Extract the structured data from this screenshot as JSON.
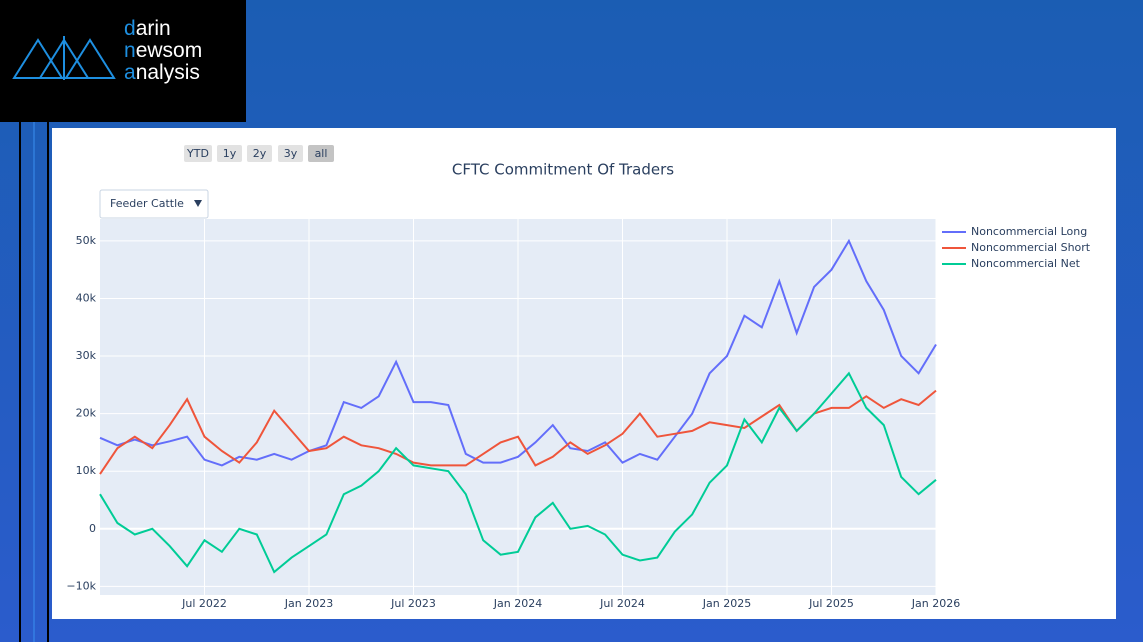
{
  "logo": {
    "lines": [
      "darin",
      "newsom",
      "analysis"
    ]
  },
  "range_buttons": [
    "YTD",
    "1y",
    "2y",
    "3y",
    "all"
  ],
  "dropdown": "Feeder Cattle",
  "chart_data": {
    "type": "line",
    "title": "CFTC Commitment Of Traders",
    "x": [
      "2022-01",
      "2022-02",
      "2022-03",
      "2022-04",
      "2022-05",
      "2022-06",
      "2022-07",
      "2022-08",
      "2022-09",
      "2022-10",
      "2022-11",
      "2022-12",
      "2023-01",
      "2023-02",
      "2023-03",
      "2023-04",
      "2023-05",
      "2023-06",
      "2023-07",
      "2023-08",
      "2023-09",
      "2023-10",
      "2023-11",
      "2023-12",
      "2024-01",
      "2024-02",
      "2024-03",
      "2024-04",
      "2024-05",
      "2024-06",
      "2024-07",
      "2024-08",
      "2024-09",
      "2024-10",
      "2024-11",
      "2024-12",
      "2025-01",
      "2025-02",
      "2025-03",
      "2025-04",
      "2025-05",
      "2025-06",
      "2025-07",
      "2025-08",
      "2025-09",
      "2025-10",
      "2025-11",
      "2025-12",
      "2026-01"
    ],
    "series": [
      {
        "name": "Noncommercial Long",
        "color": "#636efa",
        "values": [
          15800,
          14500,
          15500,
          14500,
          15200,
          16000,
          12000,
          11000,
          12500,
          12000,
          13000,
          12000,
          13500,
          14500,
          22000,
          21000,
          23000,
          29000,
          22000,
          22000,
          21500,
          13000,
          11500,
          11500,
          12500,
          15000,
          18000,
          14000,
          13500,
          15000,
          11500,
          13000,
          12000,
          16000,
          20000,
          27000,
          30000,
          37000,
          35000,
          43000,
          34000,
          42000,
          45000,
          50000,
          43000,
          38000,
          30000,
          27000,
          32000
        ]
      },
      {
        "name": "Noncommercial Short",
        "color": "#ef553b",
        "values": [
          9500,
          14000,
          16000,
          14000,
          18000,
          22500,
          16000,
          13500,
          11500,
          15000,
          20500,
          17000,
          13500,
          14000,
          16000,
          14500,
          14000,
          13000,
          11500,
          11000,
          11000,
          11000,
          13000,
          15000,
          16000,
          11000,
          12500,
          15000,
          13000,
          14500,
          16500,
          20000,
          16000,
          16500,
          17000,
          18500,
          18000,
          17500,
          19500,
          21500,
          17000,
          20000,
          21000,
          21000,
          23000,
          21000,
          22500,
          21500,
          24000
        ]
      },
      {
        "name": "Noncommercial Net",
        "color": "#00cc96",
        "values": [
          6000,
          1000,
          -1000,
          0,
          -3000,
          -6500,
          -2000,
          -4000,
          0,
          -1000,
          -7500,
          -5000,
          -3000,
          -1000,
          6000,
          7500,
          10000,
          14000,
          11000,
          10500,
          10000,
          6000,
          -2000,
          -4500,
          -4000,
          2000,
          4500,
          0,
          500,
          -1000,
          -4500,
          -5500,
          -5000,
          -500,
          2500,
          8000,
          11000,
          19000,
          15000,
          21000,
          17000,
          20000,
          23500,
          27000,
          21000,
          18000,
          9000,
          6000,
          8500
        ]
      }
    ],
    "xlim": [
      "2022-01",
      "2026-01"
    ],
    "xticks": [
      {
        "value": "2022-07",
        "label": "Jul 2022"
      },
      {
        "value": "2023-01",
        "label": "Jan 2023"
      },
      {
        "value": "2023-07",
        "label": "Jul 2023"
      },
      {
        "value": "2024-01",
        "label": "Jan 2024"
      },
      {
        "value": "2024-07",
        "label": "Jul 2024"
      },
      {
        "value": "2025-01",
        "label": "Jan 2025"
      },
      {
        "value": "2025-07",
        "label": "Jul 2025"
      },
      {
        "value": "2026-01",
        "label": "Jan 2026"
      }
    ],
    "ylim": [
      -11500,
      53800
    ],
    "yticks": [
      {
        "value": -10000,
        "label": "−10k"
      },
      0,
      {
        "value": 10000,
        "label": "10k"
      },
      {
        "value": 20000,
        "label": "20k"
      },
      {
        "value": 30000,
        "label": "30k"
      },
      {
        "value": 40000,
        "label": "40k"
      },
      {
        "value": 50000,
        "label": "50k"
      }
    ],
    "grid": true,
    "legend": "right"
  }
}
